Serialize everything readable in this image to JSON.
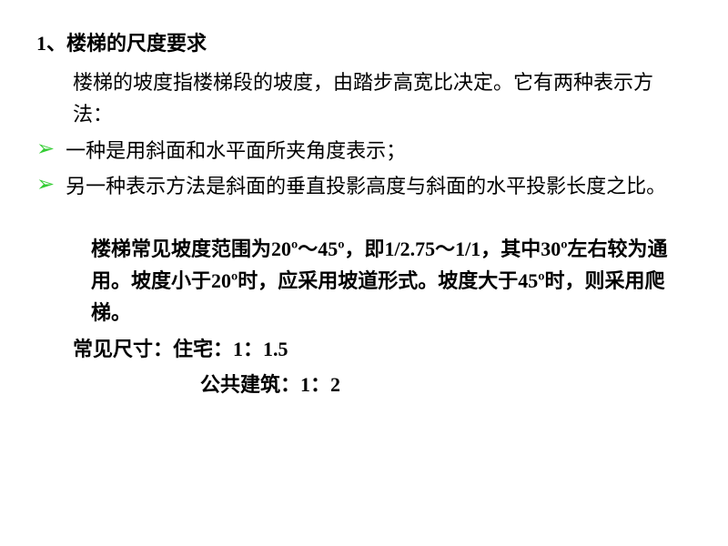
{
  "heading": "1、楼梯的尺度要求",
  "intro": "楼梯的坡度指楼梯段的坡度，由踏步高宽比决定。它有两种表示方法：",
  "bullets": [
    "一种是用斜面和水平面所夹角度表示；",
    "另一种表示方法是斜面的垂直投影高度与斜面的水平投影长度之比。"
  ],
  "body_line1": "楼梯常见坡度范围为20º～45º，即1/2.75～1/1，其中30º左右较为通用。坡度小于20º时，应采用坡道形式。坡度大于45º时，则采用爬梯。",
  "dimensions_label": "常见尺寸：住宅：1：1.5",
  "public_building": "公共建筑：1：2",
  "bullet_marker": "➢",
  "colors": {
    "bullet": "#33cc33",
    "text": "#000000",
    "background": "#ffffff"
  },
  "fontsize_pt": 22
}
